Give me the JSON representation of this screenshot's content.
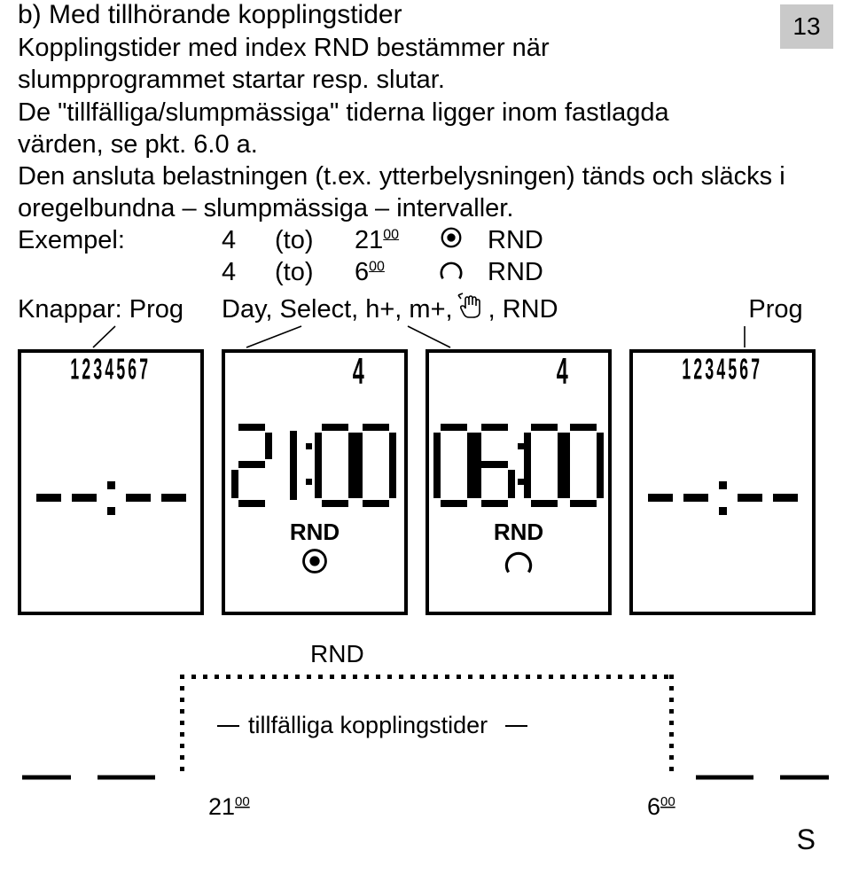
{
  "page_number": "13",
  "heading": "b) Med tillhörande kopplingstider",
  "para1": "Kopplingstider med index RND bestämmer när slumpprogrammet startar resp. slutar.",
  "para2": "De \"tillfälliga/slumpmässiga\" tiderna ligger inom fastlagda värden, se pkt. 6.0 a.",
  "para3": "Den ansluta belastningen (t.ex. ytterbelysningen) tänds och släcks i oregelbundna – slumpmässiga – intervaller.",
  "example": {
    "label": "Exempel:",
    "rows": [
      {
        "day": "4",
        "to": "(to)",
        "hour": "21",
        "min": "00",
        "icon": "filled",
        "rnd": "RND"
      },
      {
        "day": "4",
        "to": "(to)",
        "hour": "6",
        "min": "00",
        "icon": "open",
        "rnd": "RND"
      }
    ]
  },
  "knappar": {
    "label": "Knappar: Prog",
    "middle_prefix": "Day, Select, h+, m+, ",
    "middle_suffix": ", RND",
    "right": "Prog"
  },
  "panels": [
    {
      "type": "dashes",
      "day_row": "1234567"
    },
    {
      "type": "time",
      "day_single": "4",
      "time_svg": "2100",
      "rnd": "RND",
      "icon": "filled"
    },
    {
      "type": "time",
      "day_single": "4",
      "time_svg": "0600",
      "rnd": "RND",
      "icon": "open"
    },
    {
      "type": "dashes",
      "day_row": "1234567"
    }
  ],
  "timing": {
    "label_rnd": "RND",
    "label_mid": "tillfälliga kopplingstider",
    "left_time_h": "21",
    "left_time_m": "00",
    "right_time_h": "6",
    "right_time_m": "00"
  },
  "bottom_letter": "S",
  "colors": {
    "text": "#000000",
    "bg": "#ffffff",
    "page_num_bg": "#c9c9c9",
    "border": "#000000"
  }
}
